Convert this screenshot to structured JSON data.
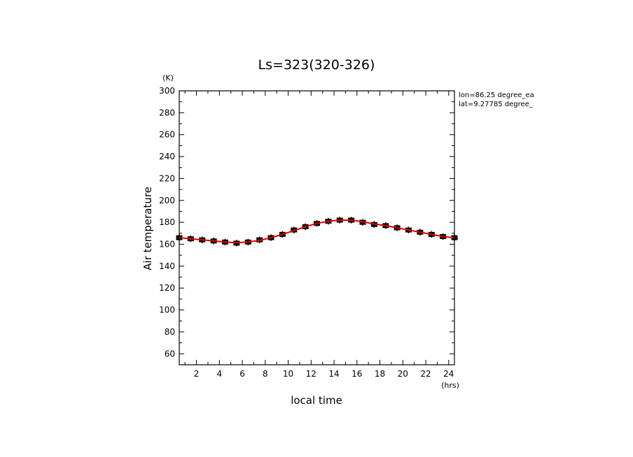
{
  "chart_data": {
    "type": "line",
    "title": "Ls=323(320-326)",
    "xlabel": "local time",
    "ylabel": "Air temperature",
    "x_unit": "(hrs)",
    "y_unit": "(K)",
    "xlim": [
      0.5,
      24.5
    ],
    "ylim": [
      50,
      300
    ],
    "xticks": [
      2,
      4,
      6,
      8,
      10,
      12,
      14,
      16,
      18,
      20,
      22,
      24
    ],
    "yticks": [
      60,
      80,
      100,
      120,
      140,
      160,
      180,
      200,
      220,
      240,
      260,
      280,
      300
    ],
    "grid": false,
    "annotations": [
      "lon=86.25 degree_ea",
      "lat=9.27785 degree_"
    ],
    "series": [
      {
        "style": "squares-with-error-bars",
        "color": "#000000",
        "x": [
          0.5,
          1.5,
          2.5,
          3.5,
          4.5,
          5.5,
          6.5,
          7.5,
          8.5,
          9.5,
          10.5,
          11.5,
          12.5,
          13.5,
          14.5,
          15.5,
          16.5,
          17.5,
          18.5,
          19.5,
          20.5,
          21.5,
          22.5,
          23.5,
          24.5
        ],
        "y": [
          166,
          165,
          164,
          163,
          162,
          161,
          162,
          164,
          166,
          169,
          173,
          176,
          179,
          181,
          182,
          182,
          180,
          178,
          177,
          175,
          173,
          171,
          169,
          167,
          166
        ],
        "err": [
          3,
          3,
          3,
          3,
          3,
          3,
          3,
          3,
          3,
          3,
          3,
          3,
          3,
          3,
          3,
          3,
          3,
          3,
          3,
          3,
          3,
          3,
          3,
          3,
          3
        ]
      },
      {
        "style": "line",
        "color": "#e00000",
        "x": [
          0.5,
          1.5,
          2.5,
          3.5,
          4.5,
          5.5,
          6.5,
          7.5,
          8.5,
          9.5,
          10.5,
          11.5,
          12.5,
          13.5,
          14.5,
          15.5,
          16.5,
          17.5,
          18.5,
          19.5,
          20.5,
          21.5,
          22.5,
          23.5,
          24.5
        ],
        "y": [
          166,
          165,
          164,
          163,
          162,
          161.5,
          162,
          163.5,
          166,
          169,
          172.5,
          176,
          179,
          181,
          182,
          182,
          180.5,
          178.5,
          177,
          175,
          173,
          171,
          169,
          167,
          166
        ]
      }
    ]
  }
}
